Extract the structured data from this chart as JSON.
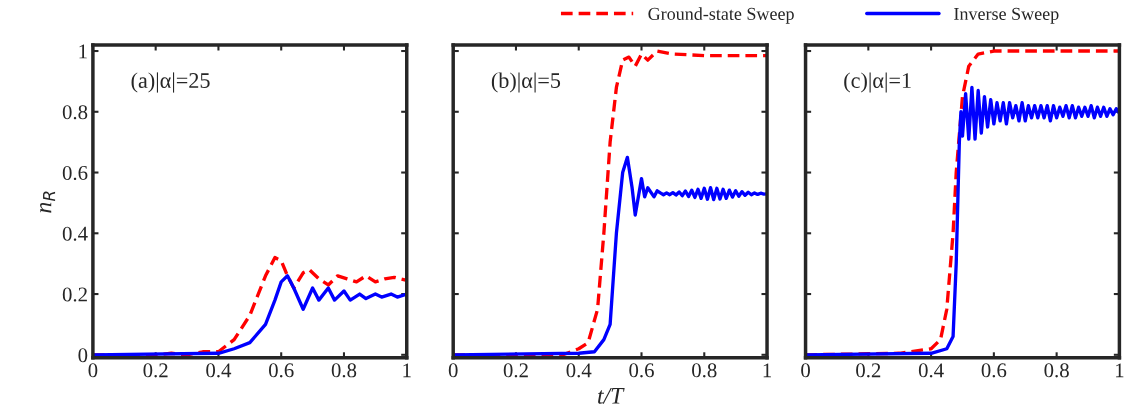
{
  "chart_data": [
    {
      "type": "line",
      "annotations": [
        "(a)|α|=25"
      ],
      "ylabel": "n$_{R}$",
      "xlim": [
        0,
        1
      ],
      "ylim": [
        -0.01,
        1.02
      ],
      "xticks": [
        0,
        0.2,
        0.4,
        0.6,
        0.8,
        1
      ],
      "yticks": [
        0,
        0.2,
        0.4,
        0.6,
        0.8,
        1
      ],
      "grid": false,
      "legend": "top",
      "series": [
        {
          "name": "Ground-state Sweep",
          "color": "#ff0000",
          "line_style": "dashed",
          "x": [
            0,
            0.2,
            0.25,
            0.3,
            0.35,
            0.4,
            0.45,
            0.5,
            0.55,
            0.58,
            0.6,
            0.62,
            0.64,
            0.67,
            0.69,
            0.72,
            0.75,
            0.78,
            0.81,
            0.84,
            0.87,
            0.9,
            0.93,
            0.96,
            1
          ],
          "values": [
            0,
            0,
            0.005,
            0,
            0.01,
            0.01,
            0.05,
            0.13,
            0.26,
            0.32,
            0.31,
            0.26,
            0.22,
            0.27,
            0.28,
            0.25,
            0.23,
            0.26,
            0.25,
            0.24,
            0.26,
            0.24,
            0.25,
            0.255,
            0.245
          ]
        },
        {
          "name": "Inverse Sweep",
          "color": "#0000ff",
          "line_style": "solid",
          "x": [
            0,
            0.4,
            0.45,
            0.5,
            0.55,
            0.58,
            0.6,
            0.62,
            0.64,
            0.67,
            0.7,
            0.72,
            0.75,
            0.77,
            0.8,
            0.82,
            0.85,
            0.87,
            0.9,
            0.92,
            0.95,
            0.97,
            1
          ],
          "values": [
            0,
            0.005,
            0.02,
            0.04,
            0.1,
            0.18,
            0.24,
            0.26,
            0.22,
            0.15,
            0.22,
            0.18,
            0.22,
            0.18,
            0.21,
            0.18,
            0.2,
            0.185,
            0.2,
            0.19,
            0.2,
            0.19,
            0.2
          ]
        }
      ]
    },
    {
      "type": "line",
      "annotations": [
        "(b)|α|=5"
      ],
      "xlabel": "t/T",
      "xlim": [
        0,
        1
      ],
      "ylim": [
        -0.01,
        1.02
      ],
      "xticks": [
        0,
        0.2,
        0.4,
        0.6,
        0.8,
        1
      ],
      "yticks": [
        0,
        0.2,
        0.4,
        0.6,
        0.8,
        1
      ],
      "tick_labels": "x",
      "grid": false,
      "series": [
        {
          "color": "#ff0000",
          "line_style": "dashed",
          "x": [
            0,
            0.35,
            0.4,
            0.43,
            0.46,
            0.48,
            0.5,
            0.52,
            0.54,
            0.56,
            0.58,
            0.6,
            0.62,
            0.65,
            0.7,
            0.8,
            0.9,
            1
          ],
          "values": [
            0,
            0,
            0.02,
            0.04,
            0.15,
            0.4,
            0.7,
            0.88,
            0.97,
            0.98,
            0.95,
            0.99,
            0.97,
            1.0,
            0.99,
            0.985,
            0.985,
            0.985
          ]
        },
        {
          "color": "#0000ff",
          "line_style": "solid",
          "x": [
            0,
            0.4,
            0.45,
            0.48,
            0.5,
            0.52,
            0.54,
            0.555,
            0.57,
            0.58,
            0.6,
            0.61,
            0.62,
            0.64,
            0.65,
            0.66,
            0.67,
            0.68,
            0.69,
            0.7,
            0.71,
            0.72,
            0.73,
            0.74,
            0.75,
            0.76,
            0.77,
            0.78,
            0.79,
            0.8,
            0.81,
            0.82,
            0.83,
            0.84,
            0.85,
            0.86,
            0.87,
            0.88,
            0.89,
            0.9,
            0.91,
            0.92,
            0.93,
            0.94,
            0.95,
            0.96,
            0.97,
            0.98,
            0.99,
            1.0
          ],
          "values": [
            0,
            0.005,
            0.01,
            0.05,
            0.1,
            0.4,
            0.6,
            0.65,
            0.55,
            0.46,
            0.58,
            0.52,
            0.55,
            0.52,
            0.54,
            0.533,
            0.527,
            0.533,
            0.527,
            0.534,
            0.526,
            0.536,
            0.524,
            0.539,
            0.521,
            0.542,
            0.518,
            0.545,
            0.515,
            0.548,
            0.512,
            0.55,
            0.511,
            0.548,
            0.513,
            0.545,
            0.515,
            0.542,
            0.519,
            0.54,
            0.522,
            0.537,
            0.525,
            0.535,
            0.527,
            0.533,
            0.528,
            0.532,
            0.529,
            0.53
          ]
        }
      ]
    },
    {
      "type": "line",
      "annotations": [
        "(c)|α|=1"
      ],
      "xlim": [
        0,
        1
      ],
      "ylim": [
        -0.01,
        1.02
      ],
      "xticks": [
        0,
        0.2,
        0.4,
        0.6,
        0.8,
        1
      ],
      "yticks": [
        0,
        0.2,
        0.4,
        0.6,
        0.8,
        1
      ],
      "tick_labels": "x",
      "grid": false,
      "series": [
        {
          "color": "#ff0000",
          "line_style": "dashed",
          "x": [
            0,
            0.3,
            0.4,
            0.43,
            0.45,
            0.47,
            0.48,
            0.5,
            0.52,
            0.55,
            0.6,
            1
          ],
          "values": [
            0,
            0.005,
            0.02,
            0.05,
            0.15,
            0.4,
            0.6,
            0.85,
            0.95,
            0.99,
            1.0,
            1.0
          ]
        },
        {
          "color": "#0000ff",
          "line_style": "solid",
          "x": [
            0,
            0.4,
            0.45,
            0.47,
            0.48,
            0.49,
            0.495,
            0.5,
            0.51,
            0.52,
            0.53,
            0.54,
            0.55,
            0.56,
            0.57,
            0.58,
            0.59,
            0.6,
            0.61,
            0.62,
            0.63,
            0.64,
            0.65,
            0.66,
            0.67,
            0.68,
            0.69,
            0.7,
            0.71,
            0.72,
            0.73,
            0.74,
            0.75,
            0.76,
            0.77,
            0.78,
            0.79,
            0.8,
            0.81,
            0.82,
            0.83,
            0.84,
            0.85,
            0.86,
            0.87,
            0.88,
            0.89,
            0.9,
            0.91,
            0.92,
            0.93,
            0.94,
            0.95,
            0.96,
            0.97,
            0.98,
            0.99,
            1.0
          ],
          "values": [
            0,
            0.005,
            0.02,
            0.06,
            0.3,
            0.7,
            0.8,
            0.72,
            0.86,
            0.71,
            0.88,
            0.71,
            0.87,
            0.73,
            0.85,
            0.75,
            0.84,
            0.76,
            0.83,
            0.77,
            0.83,
            0.76,
            0.83,
            0.78,
            0.82,
            0.77,
            0.83,
            0.77,
            0.82,
            0.78,
            0.82,
            0.78,
            0.82,
            0.78,
            0.82,
            0.77,
            0.82,
            0.78,
            0.815,
            0.785,
            0.82,
            0.78,
            0.82,
            0.78,
            0.815,
            0.785,
            0.815,
            0.785,
            0.82,
            0.78,
            0.815,
            0.785,
            0.815,
            0.785,
            0.81,
            0.79,
            0.81,
            0.795
          ]
        }
      ]
    }
  ]
}
